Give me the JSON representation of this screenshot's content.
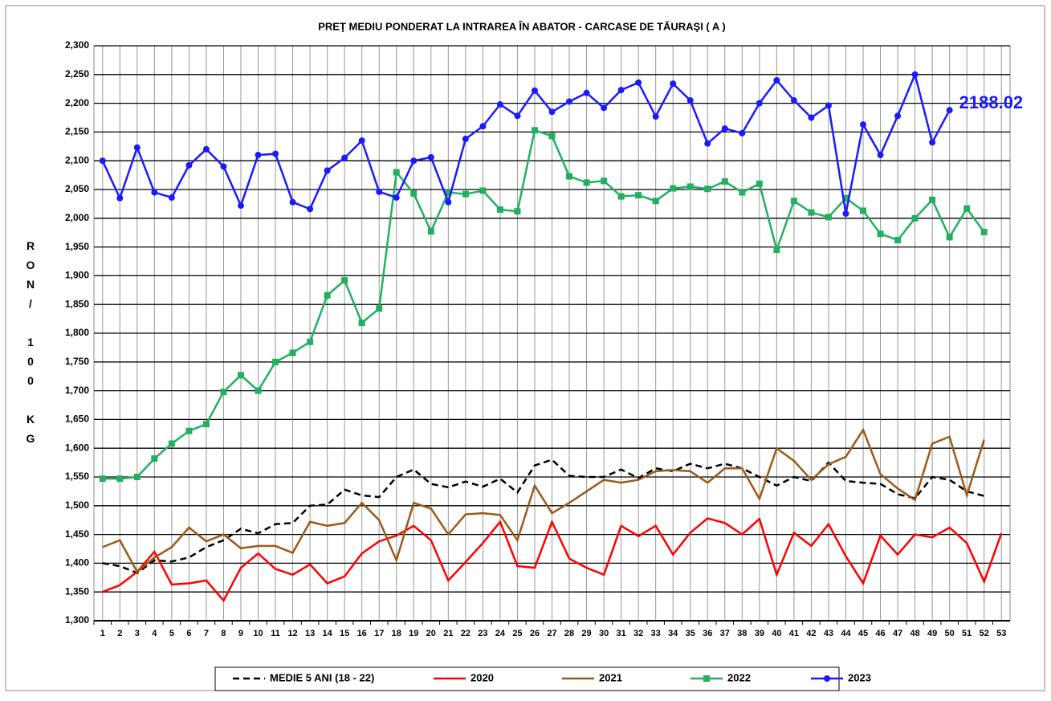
{
  "chart_data": {
    "type": "line",
    "title": "PREŢ MEDIU PONDERAT LA INTRAREA ÎN ABATOR - CARCASE DE TĂURAŞI ( A )",
    "y_label": "RON/ 100 KG",
    "categories": [
      "1",
      "2",
      "3",
      "4",
      "5",
      "6",
      "7",
      "8",
      "9",
      "10",
      "11",
      "12",
      "13",
      "14",
      "15",
      "16",
      "17",
      "18",
      "19",
      "20",
      "21",
      "22",
      "23",
      "24",
      "25",
      "26",
      "27",
      "28",
      "29",
      "30",
      "31",
      "32",
      "33",
      "34",
      "35",
      "36",
      "37",
      "38",
      "39",
      "40",
      "41",
      "42",
      "43",
      "44",
      "45",
      "46",
      "47",
      "48",
      "49",
      "50",
      "51",
      "52",
      "53"
    ],
    "ylim": [
      1300,
      2300
    ],
    "yticks": [
      {
        "value": 1300,
        "label": "1,300"
      },
      {
        "value": 1350,
        "label": "1,350"
      },
      {
        "value": 1400,
        "label": "1,400"
      },
      {
        "value": 1450,
        "label": "1,450"
      },
      {
        "value": 1500,
        "label": "1,500"
      },
      {
        "value": 1550,
        "label": "1,550"
      },
      {
        "value": 1600,
        "label": "1,600"
      },
      {
        "value": 1650,
        "label": "1,650"
      },
      {
        "value": 1700,
        "label": "1,700"
      },
      {
        "value": 1750,
        "label": "1,750"
      },
      {
        "value": 1800,
        "label": "1,800"
      },
      {
        "value": 1850,
        "label": "1,850"
      },
      {
        "value": 1900,
        "label": "1,900"
      },
      {
        "value": 1950,
        "label": "1,950"
      },
      {
        "value": 2000,
        "label": "2,000"
      },
      {
        "value": 2050,
        "label": "2,050"
      },
      {
        "value": 2100,
        "label": "2,100"
      },
      {
        "value": 2150,
        "label": "2,150"
      },
      {
        "value": 2200,
        "label": "2,200"
      },
      {
        "value": 2250,
        "label": "2,250"
      },
      {
        "value": 2300,
        "label": "2,300"
      }
    ],
    "grid": true,
    "legend": "bottom",
    "series": [
      {
        "name": "MEDIE 5 ANI (18 - 22)",
        "color": "#000000",
        "dashed": true,
        "marker": null,
        "values": [
          1400,
          1395,
          1383,
          1405,
          1403,
          1410,
          1428,
          1440,
          1460,
          1452,
          1468,
          1470,
          1500,
          1502,
          1528,
          1518,
          1515,
          1550,
          1563,
          1538,
          1532,
          1542,
          1533,
          1547,
          1523,
          1570,
          1580,
          1552,
          1550,
          1550,
          1563,
          1548,
          1565,
          1560,
          1573,
          1565,
          1573,
          1565,
          1550,
          1535,
          1550,
          1543,
          1575,
          1543,
          1540,
          1538,
          1520,
          1513,
          1550,
          1545,
          1525,
          1517,
          null
        ]
      },
      {
        "name": "2020",
        "color": "#ff0000",
        "marker": null,
        "values": [
          1350,
          1362,
          1385,
          1420,
          1363,
          1365,
          1370,
          1335,
          1392,
          1417,
          1390,
          1380,
          1398,
          1365,
          1377,
          1417,
          1438,
          1448,
          1465,
          1440,
          1370,
          1402,
          1435,
          1472,
          1395,
          1392,
          1472,
          1408,
          1392,
          1380,
          1465,
          1447,
          1465,
          1415,
          1453,
          1478,
          1470,
          1450,
          1477,
          1380,
          1453,
          1430,
          1468,
          1412,
          1365,
          1448,
          1415,
          1450,
          1445,
          1462,
          1435,
          1368,
          1452
        ]
      },
      {
        "name": "2021",
        "color": "#9a5a1a",
        "marker": null,
        "values": [
          1428,
          1440,
          1385,
          1410,
          1428,
          1462,
          1438,
          1450,
          1426,
          1430,
          1430,
          1418,
          1472,
          1465,
          1470,
          1505,
          1475,
          1405,
          1505,
          1495,
          1450,
          1485,
          1487,
          1484,
          1440,
          1535,
          1487,
          1505,
          1525,
          1545,
          1540,
          1545,
          1560,
          1562,
          1560,
          1540,
          1565,
          1565,
          1512,
          1600,
          1578,
          1545,
          1572,
          1585,
          1632,
          1555,
          1530,
          1510,
          1608,
          1620,
          1518,
          1615,
          null
        ]
      },
      {
        "name": "2022",
        "color": "#22b060",
        "marker": "square",
        "values": [
          1547,
          1547,
          1550,
          1582,
          1608,
          1630,
          1642,
          1698,
          1727,
          1700,
          1750,
          1766,
          1785,
          1866,
          1892,
          1818,
          1843,
          2080,
          2043,
          1977,
          2045,
          2042,
          2048,
          2015,
          2012,
          2153,
          2143,
          2073,
          2062,
          2065,
          2038,
          2040,
          2030,
          2052,
          2055,
          2051,
          2064,
          2045,
          2060,
          1945,
          2030,
          2010,
          2002,
          2035,
          2013,
          1973,
          1962,
          2000,
          2032,
          1967,
          2017,
          1976,
          null
        ]
      },
      {
        "name": "2023",
        "color": "#1a1aff",
        "marker": "circle",
        "values": [
          2100,
          2035,
          2123,
          2045,
          2036,
          2092,
          2120,
          2090,
          2022,
          2110,
          2112,
          2028,
          2016,
          2083,
          2105,
          2135,
          2046,
          2036,
          2100,
          2106,
          2028,
          2138,
          2160,
          2198,
          2178,
          2222,
          2185,
          2203,
          2218,
          2192,
          2223,
          2236,
          2177,
          2234,
          2205,
          2130,
          2156,
          2148,
          2200,
          2240,
          2205,
          2175,
          2196,
          2008,
          2163,
          2110,
          2178,
          2250,
          2132,
          2188.02,
          null,
          null,
          null
        ],
        "value_labels": [
          null,
          null,
          null,
          null,
          null,
          null,
          null,
          null,
          null,
          null,
          null,
          null,
          null,
          null,
          null,
          null,
          null,
          null,
          null,
          null,
          null,
          null,
          null,
          null,
          null,
          null,
          null,
          null,
          null,
          null,
          null,
          null,
          null,
          null,
          null,
          null,
          null,
          null,
          null,
          null,
          null,
          null,
          null,
          null,
          null,
          null,
          null,
          null,
          null,
          "2188.02",
          null,
          null,
          null
        ]
      }
    ]
  }
}
